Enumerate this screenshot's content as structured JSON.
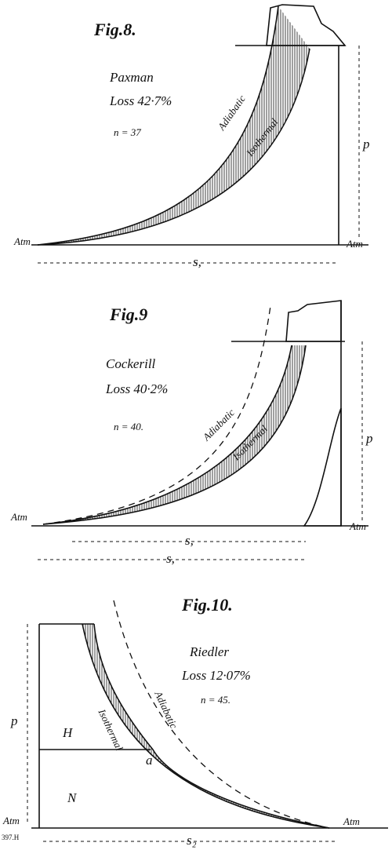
{
  "figures": [
    {
      "title": "Fig.8.",
      "name": "Paxman",
      "loss": "Loss 42·7%",
      "n": "n = 37",
      "curve_labels": [
        "Adiabatic",
        "Isothermal"
      ],
      "atm_labels": [
        "Atm",
        "Atm"
      ],
      "dimensions": [
        "s,"
      ],
      "pressure": "p"
    },
    {
      "title": "Fig.9",
      "name": "Cockerill",
      "loss": "Loss 40·2%",
      "n": "n = 40.",
      "curve_labels": [
        "Adiabatic",
        "Isothermal"
      ],
      "atm_labels": [
        "Atm",
        "Atm"
      ],
      "dimensions": [
        "s,",
        "s,"
      ],
      "pressure": "p"
    },
    {
      "title": "Fig.10.",
      "name": "Riedler",
      "loss": "Loss 12·07%",
      "n": "n = 45.",
      "curve_labels": [
        "Isothermal",
        "Adiabatic"
      ],
      "atm_labels": [
        "Atm",
        "Atm"
      ],
      "dimensions": [
        "s₂"
      ],
      "pressure": "p",
      "regions": [
        "H",
        "N",
        "a"
      ],
      "reference": "397.H"
    }
  ]
}
